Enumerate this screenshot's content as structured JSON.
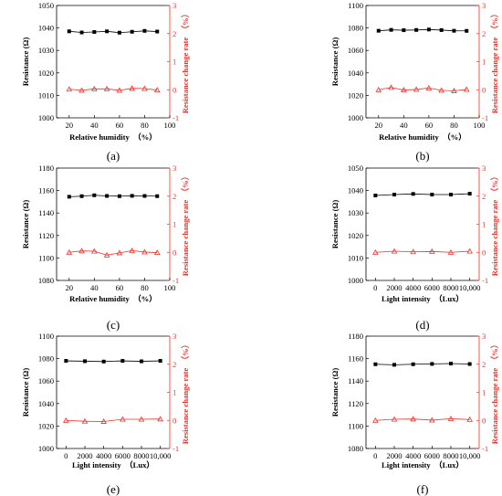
{
  "colors": {
    "resistance": "#000000",
    "change_rate": "#e8322b"
  },
  "chart_data": [
    {
      "type": "line",
      "label": "(a)",
      "xlabel": "Relative humidity  （%）",
      "ylabel": "Resistance (Ω)",
      "y2label": "Resistance change rate  （%）",
      "xlim": [
        10,
        100
      ],
      "xticks": [
        20,
        40,
        60,
        80,
        100
      ],
      "ylim": [
        1000,
        1050
      ],
      "yticks": [
        1000,
        1010,
        1020,
        1030,
        1040,
        1050
      ],
      "y2lim": [
        -1,
        3
      ],
      "y2ticks": [
        -1,
        0,
        1,
        2,
        3
      ],
      "x": [
        20,
        30,
        40,
        50,
        60,
        70,
        80,
        90
      ],
      "series": [
        {
          "axis": "left",
          "marker": "square",
          "values": [
            1038.5,
            1038.0,
            1038.2,
            1038.5,
            1037.9,
            1038.3,
            1038.7,
            1038.4
          ]
        },
        {
          "axis": "right",
          "marker": "triangle",
          "values": [
            0.02,
            -0.02,
            0.03,
            0.03,
            -0.02,
            0.05,
            0.04,
            -0.01
          ]
        }
      ]
    },
    {
      "type": "line",
      "label": "(b)",
      "xlabel": "Relative humidity  （%）",
      "ylabel": "Resistance (Ω)",
      "y2label": "Resistance change rate  （%）",
      "xlim": [
        10,
        100
      ],
      "xticks": [
        20,
        40,
        60,
        80,
        100
      ],
      "ylim": [
        1000,
        1100
      ],
      "yticks": [
        1000,
        1020,
        1040,
        1060,
        1080,
        1100
      ],
      "y2lim": [
        -1,
        3
      ],
      "y2ticks": [
        -1,
        0,
        1,
        2,
        3
      ],
      "x": [
        20,
        30,
        40,
        50,
        60,
        70,
        80,
        90
      ],
      "series": [
        {
          "axis": "left",
          "marker": "square",
          "values": [
            1077.5,
            1078.3,
            1078.0,
            1078.2,
            1078.6,
            1078.1,
            1077.5,
            1077.4
          ]
        },
        {
          "axis": "right",
          "marker": "triangle",
          "values": [
            0.0,
            0.08,
            -0.01,
            0.01,
            0.06,
            -0.02,
            -0.04,
            0.01
          ]
        }
      ]
    },
    {
      "type": "line",
      "label": "(c)",
      "xlabel": "Relative humidity  （%）",
      "ylabel": "Resistance (Ω)",
      "y2label": "Resistance change rate  （%）",
      "xlim": [
        10,
        100
      ],
      "xticks": [
        20,
        40,
        60,
        80,
        100
      ],
      "ylim": [
        1080,
        1180
      ],
      "yticks": [
        1080,
        1100,
        1120,
        1140,
        1160,
        1180
      ],
      "y2lim": [
        -1,
        3
      ],
      "y2ticks": [
        -1,
        0,
        1,
        2,
        3
      ],
      "x": [
        20,
        30,
        40,
        50,
        60,
        70,
        80,
        90
      ],
      "series": [
        {
          "axis": "left",
          "marker": "square",
          "values": [
            1154.5,
            1155.0,
            1155.8,
            1155.2,
            1155.0,
            1155.3,
            1155.2,
            1155.0
          ]
        },
        {
          "axis": "right",
          "marker": "triangle",
          "values": [
            0.0,
            0.05,
            0.04,
            -0.1,
            -0.02,
            0.06,
            0.01,
            -0.01
          ]
        }
      ]
    },
    {
      "type": "line",
      "label": "(d)",
      "xlabel": "Light intensity  （Lux）",
      "ylabel": "Resistance (Ω)",
      "y2label": "Resistance change rate  （%）",
      "xlim": [
        -1000,
        11000
      ],
      "xticks": [
        0,
        2000,
        4000,
        6000,
        8000,
        10000
      ],
      "xticklabels": [
        "0",
        "2000",
        "4000",
        "6000",
        "8000",
        "10,000"
      ],
      "ylim": [
        1000,
        1050
      ],
      "yticks": [
        1000,
        1010,
        1020,
        1030,
        1040,
        1050
      ],
      "y2lim": [
        -1,
        3
      ],
      "y2ticks": [
        -1,
        0,
        1,
        2,
        3
      ],
      "x": [
        0,
        2000,
        4000,
        6000,
        8000,
        10000
      ],
      "series": [
        {
          "axis": "left",
          "marker": "square",
          "values": [
            1037.8,
            1038.2,
            1038.5,
            1038.2,
            1038.2,
            1038.6
          ]
        },
        {
          "axis": "right",
          "marker": "triangle",
          "values": [
            0.0,
            0.04,
            0.02,
            0.03,
            0.0,
            0.04
          ]
        }
      ]
    },
    {
      "type": "line",
      "label": "(e)",
      "xlabel": "Light intensity  （Lux）",
      "ylabel": "Resistance (Ω)",
      "y2label": "Resistance change rate  （%）",
      "xlim": [
        -1000,
        11000
      ],
      "xticks": [
        0,
        2000,
        4000,
        6000,
        8000,
        10000
      ],
      "xticklabels": [
        "0",
        "2000",
        "4000",
        "6000",
        "8000",
        "10,000"
      ],
      "ylim": [
        1000,
        1100
      ],
      "yticks": [
        1000,
        1020,
        1040,
        1060,
        1080,
        1100
      ],
      "y2lim": [
        -1,
        3
      ],
      "y2ticks": [
        -1,
        0,
        1,
        2,
        3
      ],
      "x": [
        0,
        2000,
        4000,
        6000,
        8000,
        10000
      ],
      "series": [
        {
          "axis": "left",
          "marker": "square",
          "values": [
            1078.0,
            1077.7,
            1077.4,
            1078.0,
            1077.6,
            1078.0
          ]
        },
        {
          "axis": "right",
          "marker": "triangle",
          "values": [
            0.0,
            -0.03,
            -0.04,
            0.04,
            0.04,
            0.05
          ]
        }
      ]
    },
    {
      "type": "line",
      "label": "(f)",
      "xlabel": "Light intensity  （Lux）",
      "ylabel": "Resistance (Ω)",
      "y2label": "Resistance change rate  （%）",
      "xlim": [
        -1000,
        11000
      ],
      "xticks": [
        0,
        2000,
        4000,
        6000,
        8000,
        10000
      ],
      "xticklabels": [
        "0",
        "2000",
        "4000",
        "6000",
        "8000",
        "10,000"
      ],
      "ylim": [
        1080,
        1180
      ],
      "yticks": [
        1080,
        1100,
        1120,
        1140,
        1160,
        1180
      ],
      "y2lim": [
        -1,
        3
      ],
      "y2ticks": [
        -1,
        0,
        1,
        2,
        3
      ],
      "x": [
        0,
        2000,
        4000,
        6000,
        8000,
        10000
      ],
      "series": [
        {
          "axis": "left",
          "marker": "square",
          "values": [
            1155.0,
            1154.5,
            1155.0,
            1155.3,
            1155.6,
            1155.2
          ]
        },
        {
          "axis": "right",
          "marker": "triangle",
          "values": [
            0.0,
            0.04,
            0.05,
            0.01,
            0.06,
            0.03
          ]
        }
      ]
    }
  ]
}
